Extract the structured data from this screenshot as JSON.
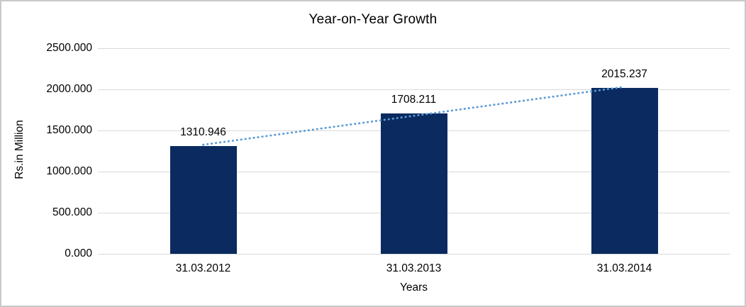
{
  "chart_data": {
    "type": "bar",
    "title": "Year-on-Year Growth",
    "categories": [
      "31.03.2012",
      "31.03.2013",
      "31.03.2014"
    ],
    "values": [
      1310.946,
      1708.211,
      2015.237
    ],
    "value_labels": [
      "1310.946",
      "1708.211",
      "2015.237"
    ],
    "xlabel": "Years",
    "ylabel": "Rs.in Million",
    "ylim": [
      0,
      2500
    ],
    "yticks": [
      0,
      500,
      1000,
      1500,
      2000,
      2500
    ],
    "ytick_labels": [
      "0.000",
      "500.000",
      "1000.000",
      "1500.000",
      "2000.000",
      "2500.000"
    ],
    "grid": true,
    "legend": "none",
    "trendline": {
      "type": "linear",
      "style": "dotted"
    },
    "colors": {
      "bar": "#0a2a60",
      "trendline": "#5b9bd5",
      "gridline": "#d9d9d9",
      "text": "#000000",
      "frame_border": "#c9c9c9"
    }
  }
}
